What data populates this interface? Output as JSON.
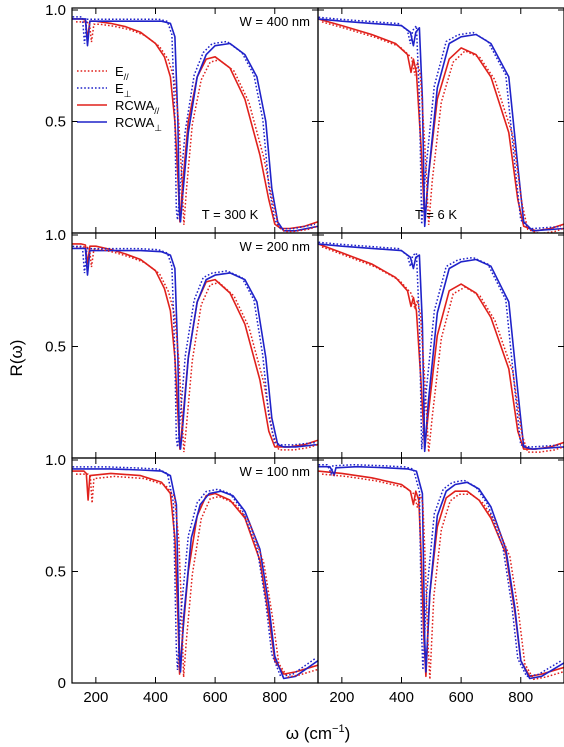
{
  "chart_data": {
    "type": "line",
    "layout": "3x2 grid",
    "ylabel": "R(ω)",
    "xlabel_main": "ω (cm",
    "xlabel_sup": "−1",
    "xlabel_end": ")",
    "xlim": [
      120,
      945
    ],
    "ylim": [
      0,
      1.0
    ],
    "xticks": [
      200,
      400,
      600,
      800
    ],
    "yticks": [
      {
        "value": 1.0,
        "label": "1.0"
      },
      {
        "value": 0.5,
        "label": "0.5"
      },
      {
        "value": 0.0,
        "label": "0"
      }
    ],
    "legend": {
      "placement": "left-middle of top-left panel",
      "entries": [
        {
          "label": "E",
          "sub": "//",
          "color": "#e0211c",
          "style": "dotted"
        },
        {
          "label": "E",
          "sub": "⊥",
          "color": "#1f22c9",
          "style": "dotted"
        },
        {
          "label": "RCWA",
          "sub": "//",
          "color": "#e0211c",
          "style": "solid"
        },
        {
          "label": "RCWA",
          "sub": "⊥",
          "color": "#1f22c9",
          "style": "solid"
        }
      ]
    },
    "annotations": {
      "row_labels": [
        "W = 400 nm",
        "W = 200 nm",
        "W = 100 nm"
      ],
      "col_labels": [
        "T = 300 K",
        "T = 6 K"
      ]
    },
    "colors": {
      "parallel": "#e0211c",
      "perp": "#1f22c9"
    },
    "panels": [
      {
        "row": 0,
        "col": 0,
        "parallel": [
          [
            120,
            0.96
          ],
          [
            150,
            0.96
          ],
          [
            165,
            0.955
          ],
          [
            172,
            0.87
          ],
          [
            180,
            0.95
          ],
          [
            200,
            0.95
          ],
          [
            250,
            0.94
          ],
          [
            300,
            0.925
          ],
          [
            350,
            0.9
          ],
          [
            400,
            0.85
          ],
          [
            430,
            0.79
          ],
          [
            450,
            0.7
          ],
          [
            465,
            0.5
          ],
          [
            475,
            0.25
          ],
          [
            482,
            0.05
          ],
          [
            490,
            0.2
          ],
          [
            510,
            0.5
          ],
          [
            540,
            0.7
          ],
          [
            570,
            0.78
          ],
          [
            600,
            0.79
          ],
          [
            650,
            0.74
          ],
          [
            700,
            0.6
          ],
          [
            750,
            0.35
          ],
          [
            780,
            0.15
          ],
          [
            800,
            0.04
          ],
          [
            820,
            0.02
          ],
          [
            850,
            0.02
          ],
          [
            900,
            0.03
          ],
          [
            945,
            0.05
          ]
        ],
        "perp": [
          [
            120,
            0.96
          ],
          [
            165,
            0.96
          ],
          [
            172,
            0.84
          ],
          [
            180,
            0.95
          ],
          [
            250,
            0.95
          ],
          [
            350,
            0.95
          ],
          [
            420,
            0.95
          ],
          [
            450,
            0.94
          ],
          [
            465,
            0.88
          ],
          [
            475,
            0.5
          ],
          [
            480,
            0.1
          ],
          [
            484,
            0.05
          ],
          [
            490,
            0.15
          ],
          [
            510,
            0.45
          ],
          [
            540,
            0.7
          ],
          [
            570,
            0.8
          ],
          [
            600,
            0.84
          ],
          [
            650,
            0.85
          ],
          [
            700,
            0.8
          ],
          [
            740,
            0.7
          ],
          [
            770,
            0.5
          ],
          [
            790,
            0.2
          ],
          [
            810,
            0.05
          ],
          [
            830,
            0.01
          ],
          [
            870,
            0.01
          ],
          [
            945,
            0.03
          ]
        ]
      },
      {
        "row": 0,
        "col": 1,
        "parallel": [
          [
            120,
            0.96
          ],
          [
            200,
            0.93
          ],
          [
            300,
            0.89
          ],
          [
            380,
            0.85
          ],
          [
            420,
            0.8
          ],
          [
            432,
            0.72
          ],
          [
            440,
            0.78
          ],
          [
            450,
            0.72
          ],
          [
            465,
            0.4
          ],
          [
            478,
            0.05
          ],
          [
            490,
            0.25
          ],
          [
            520,
            0.6
          ],
          [
            560,
            0.78
          ],
          [
            600,
            0.83
          ],
          [
            650,
            0.8
          ],
          [
            700,
            0.7
          ],
          [
            760,
            0.45
          ],
          [
            790,
            0.15
          ],
          [
            810,
            0.03
          ],
          [
            850,
            0.01
          ],
          [
            900,
            0.02
          ],
          [
            945,
            0.04
          ]
        ],
        "perp": [
          [
            120,
            0.96
          ],
          [
            200,
            0.95
          ],
          [
            300,
            0.94
          ],
          [
            400,
            0.93
          ],
          [
            430,
            0.9
          ],
          [
            440,
            0.84
          ],
          [
            448,
            0.9
          ],
          [
            460,
            0.92
          ],
          [
            470,
            0.6
          ],
          [
            478,
            0.03
          ],
          [
            490,
            0.25
          ],
          [
            520,
            0.65
          ],
          [
            560,
            0.85
          ],
          [
            600,
            0.88
          ],
          [
            650,
            0.89
          ],
          [
            700,
            0.85
          ],
          [
            760,
            0.7
          ],
          [
            790,
            0.3
          ],
          [
            810,
            0.05
          ],
          [
            840,
            0.01
          ],
          [
            945,
            0.02
          ]
        ]
      },
      {
        "row": 1,
        "col": 0,
        "parallel": [
          [
            120,
            0.96
          ],
          [
            150,
            0.96
          ],
          [
            165,
            0.955
          ],
          [
            172,
            0.87
          ],
          [
            180,
            0.95
          ],
          [
            200,
            0.95
          ],
          [
            250,
            0.935
          ],
          [
            300,
            0.915
          ],
          [
            350,
            0.89
          ],
          [
            400,
            0.84
          ],
          [
            430,
            0.76
          ],
          [
            450,
            0.66
          ],
          [
            465,
            0.45
          ],
          [
            475,
            0.2
          ],
          [
            482,
            0.04
          ],
          [
            490,
            0.15
          ],
          [
            510,
            0.45
          ],
          [
            540,
            0.7
          ],
          [
            570,
            0.79
          ],
          [
            600,
            0.8
          ],
          [
            650,
            0.74
          ],
          [
            700,
            0.6
          ],
          [
            750,
            0.35
          ],
          [
            780,
            0.12
          ],
          [
            800,
            0.05
          ],
          [
            850,
            0.05
          ],
          [
            900,
            0.06
          ],
          [
            945,
            0.08
          ]
        ],
        "perp": [
          [
            120,
            0.94
          ],
          [
            165,
            0.94
          ],
          [
            172,
            0.82
          ],
          [
            180,
            0.93
          ],
          [
            250,
            0.93
          ],
          [
            350,
            0.93
          ],
          [
            420,
            0.925
          ],
          [
            450,
            0.91
          ],
          [
            465,
            0.85
          ],
          [
            475,
            0.45
          ],
          [
            480,
            0.08
          ],
          [
            484,
            0.04
          ],
          [
            490,
            0.12
          ],
          [
            510,
            0.45
          ],
          [
            540,
            0.7
          ],
          [
            570,
            0.8
          ],
          [
            600,
            0.82
          ],
          [
            650,
            0.83
          ],
          [
            700,
            0.8
          ],
          [
            740,
            0.7
          ],
          [
            770,
            0.45
          ],
          [
            790,
            0.18
          ],
          [
            810,
            0.06
          ],
          [
            830,
            0.05
          ],
          [
            870,
            0.05
          ],
          [
            945,
            0.06
          ]
        ]
      },
      {
        "row": 1,
        "col": 1,
        "parallel": [
          [
            120,
            0.96
          ],
          [
            200,
            0.92
          ],
          [
            300,
            0.87
          ],
          [
            380,
            0.81
          ],
          [
            420,
            0.75
          ],
          [
            432,
            0.68
          ],
          [
            440,
            0.72
          ],
          [
            450,
            0.66
          ],
          [
            465,
            0.35
          ],
          [
            478,
            0.04
          ],
          [
            490,
            0.2
          ],
          [
            520,
            0.55
          ],
          [
            560,
            0.75
          ],
          [
            600,
            0.78
          ],
          [
            650,
            0.74
          ],
          [
            700,
            0.63
          ],
          [
            760,
            0.4
          ],
          [
            790,
            0.12
          ],
          [
            810,
            0.04
          ],
          [
            850,
            0.04
          ],
          [
            900,
            0.05
          ],
          [
            945,
            0.07
          ]
        ],
        "perp": [
          [
            120,
            0.96
          ],
          [
            200,
            0.95
          ],
          [
            300,
            0.94
          ],
          [
            400,
            0.93
          ],
          [
            430,
            0.9
          ],
          [
            440,
            0.85
          ],
          [
            448,
            0.9
          ],
          [
            460,
            0.91
          ],
          [
            470,
            0.6
          ],
          [
            478,
            0.03
          ],
          [
            490,
            0.25
          ],
          [
            520,
            0.65
          ],
          [
            560,
            0.85
          ],
          [
            600,
            0.88
          ],
          [
            650,
            0.89
          ],
          [
            700,
            0.86
          ],
          [
            760,
            0.7
          ],
          [
            790,
            0.3
          ],
          [
            810,
            0.05
          ],
          [
            840,
            0.04
          ],
          [
            945,
            0.05
          ]
        ]
      },
      {
        "row": 2,
        "col": 0,
        "parallel": [
          [
            120,
            0.95
          ],
          [
            160,
            0.95
          ],
          [
            168,
            0.94
          ],
          [
            174,
            0.82
          ],
          [
            180,
            0.93
          ],
          [
            250,
            0.94
          ],
          [
            350,
            0.93
          ],
          [
            420,
            0.9
          ],
          [
            450,
            0.85
          ],
          [
            465,
            0.65
          ],
          [
            475,
            0.3
          ],
          [
            481,
            0.04
          ],
          [
            490,
            0.2
          ],
          [
            510,
            0.5
          ],
          [
            540,
            0.75
          ],
          [
            570,
            0.84
          ],
          [
            600,
            0.85
          ],
          [
            650,
            0.82
          ],
          [
            700,
            0.74
          ],
          [
            750,
            0.55
          ],
          [
            780,
            0.3
          ],
          [
            800,
            0.1
          ],
          [
            830,
            0.04
          ],
          [
            870,
            0.05
          ],
          [
            945,
            0.08
          ]
        ],
        "perp": [
          [
            120,
            0.96
          ],
          [
            250,
            0.96
          ],
          [
            350,
            0.955
          ],
          [
            420,
            0.95
          ],
          [
            450,
            0.93
          ],
          [
            470,
            0.8
          ],
          [
            480,
            0.15
          ],
          [
            484,
            0.05
          ],
          [
            495,
            0.3
          ],
          [
            520,
            0.65
          ],
          [
            550,
            0.8
          ],
          [
            580,
            0.85
          ],
          [
            620,
            0.86
          ],
          [
            660,
            0.84
          ],
          [
            700,
            0.77
          ],
          [
            750,
            0.6
          ],
          [
            780,
            0.35
          ],
          [
            800,
            0.12
          ],
          [
            830,
            0.02
          ],
          [
            870,
            0.03
          ],
          [
            945,
            0.1
          ]
        ]
      },
      {
        "row": 2,
        "col": 1,
        "parallel": [
          [
            120,
            0.95
          ],
          [
            200,
            0.94
          ],
          [
            300,
            0.92
          ],
          [
            400,
            0.89
          ],
          [
            430,
            0.86
          ],
          [
            440,
            0.8
          ],
          [
            448,
            0.86
          ],
          [
            458,
            0.82
          ],
          [
            465,
            0.6
          ],
          [
            475,
            0.2
          ],
          [
            482,
            0.03
          ],
          [
            495,
            0.4
          ],
          [
            520,
            0.7
          ],
          [
            550,
            0.83
          ],
          [
            580,
            0.86
          ],
          [
            620,
            0.86
          ],
          [
            660,
            0.82
          ],
          [
            700,
            0.74
          ],
          [
            750,
            0.58
          ],
          [
            780,
            0.32
          ],
          [
            800,
            0.1
          ],
          [
            830,
            0.03
          ],
          [
            870,
            0.04
          ],
          [
            945,
            0.07
          ]
        ],
        "perp": [
          [
            120,
            0.97
          ],
          [
            160,
            0.97
          ],
          [
            168,
            0.95
          ],
          [
            174,
            0.93
          ],
          [
            180,
            0.965
          ],
          [
            250,
            0.97
          ],
          [
            350,
            0.965
          ],
          [
            420,
            0.96
          ],
          [
            450,
            0.95
          ],
          [
            470,
            0.85
          ],
          [
            478,
            0.2
          ],
          [
            482,
            0.05
          ],
          [
            495,
            0.4
          ],
          [
            520,
            0.75
          ],
          [
            550,
            0.86
          ],
          [
            580,
            0.89
          ],
          [
            620,
            0.9
          ],
          [
            660,
            0.87
          ],
          [
            700,
            0.79
          ],
          [
            750,
            0.6
          ],
          [
            780,
            0.34
          ],
          [
            800,
            0.1
          ],
          [
            830,
            0.02
          ],
          [
            870,
            0.03
          ],
          [
            945,
            0.09
          ]
        ]
      }
    ]
  }
}
